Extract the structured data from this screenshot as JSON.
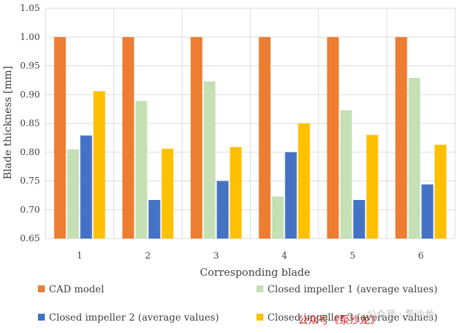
{
  "chart_data": {
    "type": "bar",
    "title": "",
    "xlabel": "Corresponding blade",
    "ylabel": "Blade thickness [mm]",
    "ylim": [
      0.65,
      1.05
    ],
    "yticks": [
      "0.65",
      "0.70",
      "0.75",
      "0.80",
      "0.85",
      "0.90",
      "0.95",
      "1.00",
      "1.05"
    ],
    "grid": true,
    "legend_position": "bottom",
    "categories": [
      "1",
      "2",
      "3",
      "4",
      "5",
      "6"
    ],
    "series": [
      {
        "name": "CAD model",
        "color": "#ED7D31",
        "values": [
          1.0,
          1.0,
          1.0,
          1.0,
          1.0,
          1.0
        ]
      },
      {
        "name": "Closed impeller 1 (average values)",
        "color": "#C5E0B4",
        "values": [
          0.805,
          0.889,
          0.923,
          0.723,
          0.873,
          0.929
        ]
      },
      {
        "name": "Closed impeller 2 (average values)",
        "color": "#4472C4",
        "values": [
          0.829,
          0.717,
          0.75,
          0.8,
          0.717,
          0.744
        ]
      },
      {
        "name": "Closed impeller 3 (average values)",
        "color": "#FFC000",
        "values": [
          0.906,
          0.806,
          0.809,
          0.85,
          0.83,
          0.813
        ]
      }
    ]
  },
  "watermark": {
    "red_text": "公众号《泵沙龙》",
    "gray_text": "公众号 · 泵沙龙"
  }
}
